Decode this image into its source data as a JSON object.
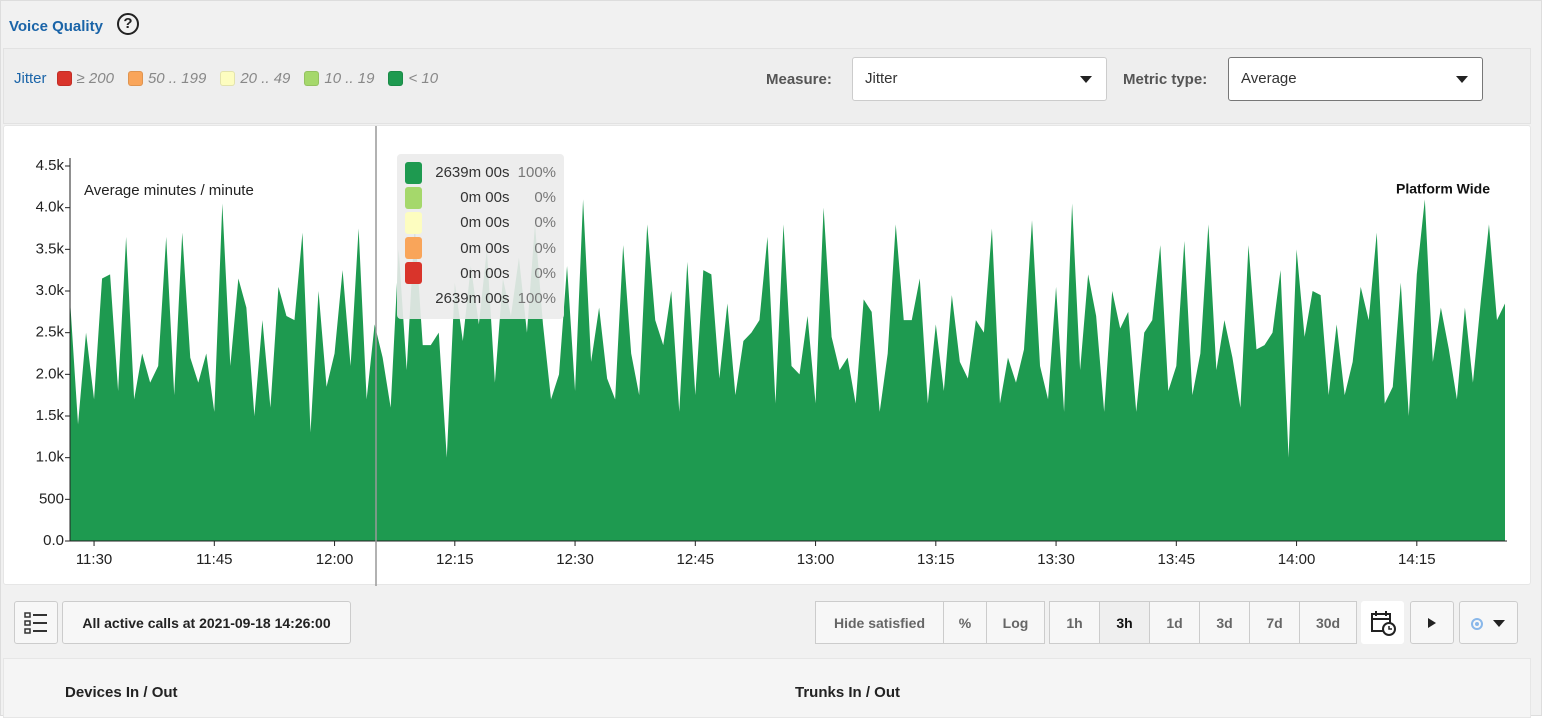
{
  "header": {
    "title": "Voice Quality",
    "help": "?"
  },
  "legend": {
    "label": "Jitter",
    "items": [
      {
        "label": "≥ 200",
        "color": "#d9342b"
      },
      {
        "label": "50 .. 199",
        "color": "#f9a55a"
      },
      {
        "label": "20 .. 49",
        "color": "#fdfdc0"
      },
      {
        "label": "10 .. 19",
        "color": "#a5d86b"
      },
      {
        "label": "< 10",
        "color": "#1e9a50"
      }
    ]
  },
  "controls": {
    "measure_label": "Measure:",
    "measure_value": "Jitter",
    "metric_label": "Metric type:",
    "metric_value": "Average"
  },
  "chart_data": {
    "type": "area",
    "color": "#1e9a50",
    "y_label": "Average minutes / minute",
    "annotation": "Platform Wide",
    "x": [
      "11:27",
      "11:28",
      "11:29",
      "11:30",
      "11:31",
      "11:32",
      "11:33",
      "11:34",
      "11:35",
      "11:36",
      "11:37",
      "11:38",
      "11:39",
      "11:40",
      "11:41",
      "11:42",
      "11:43",
      "11:44",
      "11:45",
      "11:46",
      "11:47",
      "11:48",
      "11:49",
      "11:50",
      "11:51",
      "11:52",
      "11:53",
      "11:54",
      "11:55",
      "11:56",
      "11:57",
      "11:58",
      "11:59",
      "12:00",
      "12:01",
      "12:02",
      "12:03",
      "12:04",
      "12:05",
      "12:06",
      "12:07",
      "12:08",
      "12:09",
      "12:10",
      "12:11",
      "12:12",
      "12:13",
      "12:14",
      "12:15",
      "12:16",
      "12:17",
      "12:18",
      "12:19",
      "12:20",
      "12:21",
      "12:22",
      "12:23",
      "12:24",
      "12:25",
      "12:26",
      "12:27",
      "12:28",
      "12:29",
      "12:30",
      "12:31",
      "12:32",
      "12:33",
      "12:34",
      "12:35",
      "12:36",
      "12:37",
      "12:38",
      "12:39",
      "12:40",
      "12:41",
      "12:42",
      "12:43",
      "12:44",
      "12:45",
      "12:46",
      "12:47",
      "12:48",
      "12:49",
      "12:50",
      "12:51",
      "12:52",
      "12:53",
      "12:54",
      "12:55",
      "12:56",
      "12:57",
      "12:58",
      "12:59",
      "13:00",
      "13:01",
      "13:02",
      "13:03",
      "13:04",
      "13:05",
      "13:06",
      "13:07",
      "13:08",
      "13:09",
      "13:10",
      "13:11",
      "13:12",
      "13:13",
      "13:14",
      "13:15",
      "13:16",
      "13:17",
      "13:18",
      "13:19",
      "13:20",
      "13:21",
      "13:22",
      "13:23",
      "13:24",
      "13:25",
      "13:26",
      "13:27",
      "13:28",
      "13:29",
      "13:30",
      "13:31",
      "13:32",
      "13:33",
      "13:34",
      "13:35",
      "13:36",
      "13:37",
      "13:38",
      "13:39",
      "13:40",
      "13:41",
      "13:42",
      "13:43",
      "13:44",
      "13:45",
      "13:46",
      "13:47",
      "13:48",
      "13:49",
      "13:50",
      "13:51",
      "13:52",
      "13:53",
      "13:54",
      "13:55",
      "13:56",
      "13:57",
      "13:58",
      "13:59",
      "14:00",
      "14:01",
      "14:02",
      "14:03",
      "14:04",
      "14:05",
      "14:06",
      "14:07",
      "14:08",
      "14:09",
      "14:10",
      "14:11",
      "14:12",
      "14:13",
      "14:14",
      "14:15",
      "14:16",
      "14:17",
      "14:18",
      "14:19",
      "14:20",
      "14:21",
      "14:22",
      "14:23",
      "14:24",
      "14:25",
      "14:26"
    ],
    "values": [
      2900,
      1400,
      2500,
      1700,
      3150,
      3200,
      1800,
      3650,
      1700,
      2250,
      1900,
      2100,
      3650,
      1750,
      3700,
      2200,
      1900,
      2250,
      1550,
      4050,
      2100,
      3150,
      2800,
      1500,
      2650,
      1600,
      3050,
      2700,
      2650,
      3700,
      1300,
      3000,
      1850,
      2250,
      3250,
      2100,
      3750,
      1700,
      2600,
      2200,
      1600,
      3500,
      2050,
      3800,
      2350,
      2350,
      2500,
      1000,
      3100,
      2400,
      3300,
      2600,
      3500,
      1900,
      3150,
      2700,
      3400,
      2500,
      3800,
      2600,
      1700,
      2000,
      3300,
      1800,
      4100,
      2150,
      2800,
      1950,
      1700,
      3550,
      2250,
      1750,
      3800,
      2650,
      2350,
      3000,
      1550,
      3350,
      1750,
      3250,
      3200,
      1950,
      2850,
      1750,
      2400,
      2500,
      2650,
      3650,
      1650,
      3800,
      2100,
      2000,
      2700,
      1650,
      4000,
      2450,
      2050,
      2200,
      1650,
      2900,
      2750,
      1550,
      2250,
      3800,
      2650,
      2650,
      3150,
      1650,
      2600,
      1800,
      2950,
      2150,
      1950,
      2650,
      2500,
      3750,
      1650,
      2200,
      1900,
      2300,
      3850,
      2100,
      1700,
      3050,
      1550,
      4050,
      2050,
      3200,
      2700,
      1550,
      3000,
      2550,
      2750,
      1550,
      2500,
      2650,
      3550,
      1800,
      2100,
      3600,
      1750,
      2250,
      3800,
      2050,
      2650,
      2200,
      1600,
      3550,
      2300,
      2350,
      2500,
      3250,
      1000,
      3500,
      2450,
      3000,
      2950,
      1750,
      2600,
      1750,
      2150,
      3050,
      2650,
      3700,
      1650,
      1850,
      3100,
      1500,
      3200,
      4100,
      2150,
      2800,
      2300,
      1700,
      2800,
      1900,
      2900,
      3800,
      2650,
      2850
    ],
    "xlim": [
      "11:27",
      "14:26"
    ],
    "xticks": [
      "11:30",
      "11:45",
      "12:00",
      "12:15",
      "12:30",
      "12:45",
      "13:00",
      "13:15",
      "13:30",
      "13:45",
      "14:00",
      "14:15"
    ],
    "ylim": [
      0,
      4500
    ],
    "yticks": [
      {
        "value": 0,
        "label": "0.0"
      },
      500,
      {
        "value": 1000,
        "label": "1.0k"
      },
      {
        "value": 1500,
        "label": "1.5k"
      },
      {
        "value": 2000,
        "label": "2.0k"
      },
      {
        "value": 2500,
        "label": "2.5k"
      },
      {
        "value": 3000,
        "label": "3.0k"
      },
      {
        "value": 3500,
        "label": "3.5k"
      },
      {
        "value": 4000,
        "label": "4.0k"
      },
      {
        "value": 4500,
        "label": "4.5k"
      }
    ]
  },
  "tooltip": {
    "rows": [
      {
        "color": "#1e9a50",
        "value": "2639m 00s",
        "percent": "100%"
      },
      {
        "color": "#a5d86b",
        "value": "0m 00s",
        "percent": "0%"
      },
      {
        "color": "#fdfdc0",
        "value": "0m 00s",
        "percent": "0%"
      },
      {
        "color": "#f9a55a",
        "value": "0m 00s",
        "percent": "0%"
      },
      {
        "color": "#d9342b",
        "value": "0m 00s",
        "percent": "0%"
      },
      {
        "value": "2639m 00s",
        "percent": "100%"
      }
    ]
  },
  "toolbar": {
    "snapshot": "All active calls at 2021-09-18 14:26:00",
    "buttons": [
      "Hide satisfied",
      "%",
      "Log"
    ],
    "ranges": [
      "1h",
      "3h",
      "1d",
      "3d",
      "7d",
      "30d"
    ],
    "selected_range": "3h"
  },
  "sections": [
    "Devices In / Out",
    "Trunks In / Out"
  ]
}
